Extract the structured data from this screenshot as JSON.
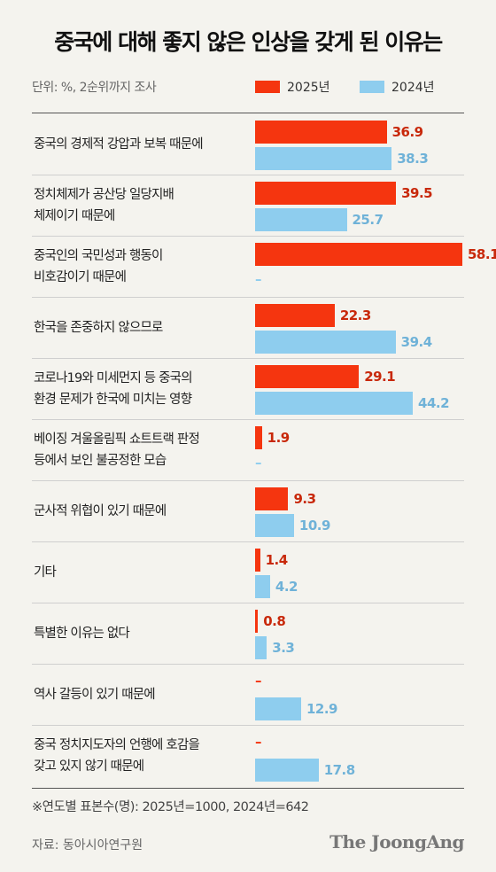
{
  "header": {
    "title": "중국에 대해 좋지 않은 인상을 갖게 된 이유는",
    "unit": "단위: %, 2순위까지 조사"
  },
  "colors": {
    "y2025": "#f5350f",
    "y2024": "#8ecdee",
    "background": "#f4f3ee"
  },
  "footer": {
    "note": "※연도별 표본수(명): 2025년=1000, 2024년=642",
    "source": "자료: 동아시아연구원",
    "brand": "The JoongAng"
  },
  "chart_data": {
    "type": "bar",
    "orientation": "horizontal",
    "title": "중국에 대해 좋지 않은 인상을 갖게 된 이유는",
    "unit": "단위: %, 2순위까지 조사",
    "categories": [
      [
        "중국의 경제적 강압과 보복 때문에"
      ],
      [
        "정치체제가 공산당 일당지배",
        "체제이기 때문에"
      ],
      [
        "중국인의 국민성과 행동이",
        "비호감이기 때문에"
      ],
      [
        "한국을 존중하지 않으므로"
      ],
      [
        "코로나19와 미세먼지 등 중국의",
        "환경 문제가 한국에 미치는 영향"
      ],
      [
        "베이징 겨울올림픽 쇼트트랙 판정",
        "등에서 보인 불공정한 모습"
      ],
      [
        "군사적 위협이 있기 때문에"
      ],
      [
        "기타"
      ],
      [
        "특별한 이유는 없다"
      ],
      [
        "역사 갈등이 있기 때문에"
      ],
      [
        "중국 정치지도자의 언행에 호감을",
        "갖고 있지 않기 때문에"
      ]
    ],
    "series": [
      {
        "name": "2025년",
        "color": "#f5350f",
        "values": [
          36.9,
          39.5,
          58.1,
          22.3,
          29.1,
          1.9,
          9.3,
          1.4,
          0.8,
          null,
          null
        ],
        "labels": [
          "36.9",
          "39.5",
          "58.1",
          "22.3",
          "29.1",
          "1.9",
          "9.3",
          "1.4",
          "0.8",
          "–",
          "–"
        ]
      },
      {
        "name": "2024년",
        "color": "#8ecdee",
        "values": [
          38.3,
          25.7,
          null,
          39.4,
          44.2,
          null,
          10.9,
          4.2,
          3.3,
          12.9,
          17.8
        ],
        "labels": [
          "38.3",
          "25.7",
          "–",
          "39.4",
          "44.2",
          "–",
          "10.9",
          "4.2",
          "3.3",
          "12.9",
          "17.8"
        ]
      }
    ],
    "xlim": [
      0,
      58.1
    ],
    "legend": "top-right",
    "grid": false
  }
}
